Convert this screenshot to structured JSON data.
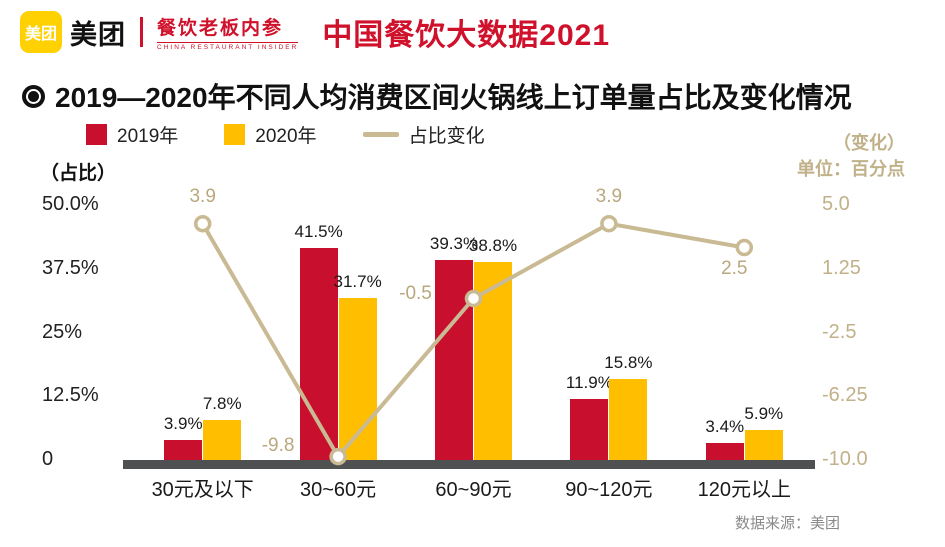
{
  "header": {
    "logo_text": "美团",
    "brand_name": "美团",
    "sub_brand": "餐饮老板内参",
    "sub_brand_en": "CHINA RESTAURANT INSIDER",
    "report_title": "中国餐饮大数据2021"
  },
  "chart": {
    "legend": [
      {
        "label": "2019年",
        "color": "#c8102e",
        "type": "square"
      },
      {
        "label": "2020年",
        "color": "#ffbe00",
        "type": "square"
      },
      {
        "label": "占比变化",
        "color": "#c9ba94",
        "type": "line"
      }
    ],
    "left_axis": {
      "unit": "（占比）",
      "ticks": [
        "50.0%",
        "37.5%",
        "25%",
        "12.5%",
        "0"
      ]
    },
    "right_axis": {
      "unit_line1": "（变化）",
      "unit_line2": "单位：百分点",
      "ticks": [
        "5.0",
        "1.25",
        "-2.5",
        "-6.25",
        "-10.0"
      ]
    },
    "source": "数据来源：美团"
  },
  "chart_data": {
    "type": "bar",
    "title": "2019—2020年不同人均消费区间火锅线上订单量占比及变化情况",
    "categories": [
      "30元及以下",
      "30~60元",
      "60~90元",
      "90~120元",
      "120元以上"
    ],
    "series": [
      {
        "name": "2019年",
        "type": "bar",
        "color": "#c8102e",
        "values": [
          3.9,
          41.5,
          39.3,
          11.9,
          3.4
        ],
        "labels": [
          "3.9%",
          "41.5%",
          "39.3%",
          "11.9%",
          "3.4%"
        ]
      },
      {
        "name": "2020年",
        "type": "bar",
        "color": "#ffbe00",
        "values": [
          7.8,
          31.7,
          38.8,
          15.8,
          5.9
        ],
        "labels": [
          "7.8%",
          "31.7%",
          "38.8%",
          "15.8%",
          "5.9%"
        ]
      },
      {
        "name": "占比变化",
        "type": "line",
        "color": "#c9ba94",
        "values": [
          3.9,
          -9.8,
          -0.5,
          3.9,
          2.5
        ],
        "labels": [
          "3.9",
          "-9.8",
          "-0.5",
          "3.9",
          "2.5"
        ]
      }
    ],
    "left_ylim": [
      0,
      50
    ],
    "right_ylim": [
      -10,
      5
    ],
    "xlabel": "",
    "ylabel_left": "（占比）",
    "ylabel_right": "（变化）单位：百分点",
    "grid": false,
    "legend_position": "top-left"
  }
}
